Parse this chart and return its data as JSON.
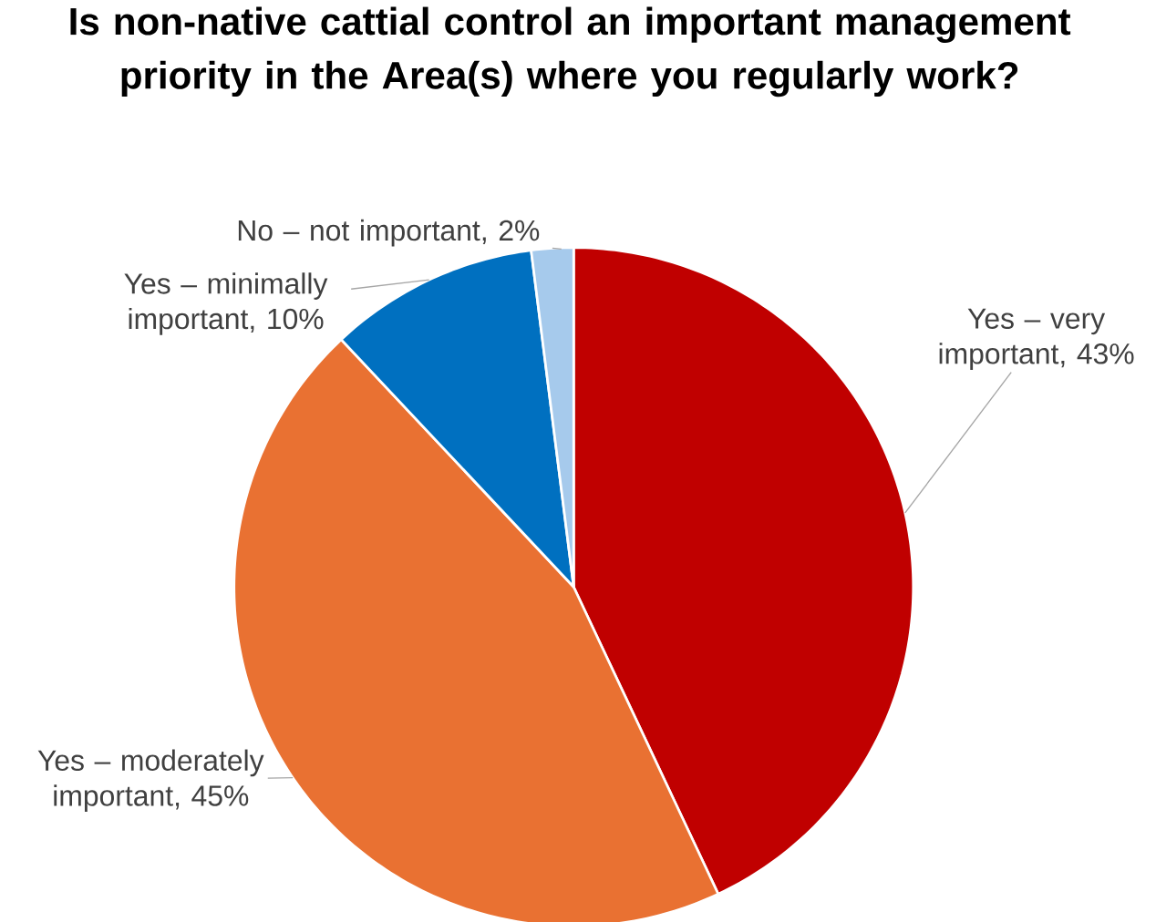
{
  "chart_data": {
    "type": "pie",
    "title": "Is non-native cattial control an important management priority in the Area(s) where you regularly work?",
    "categories": [
      "Yes – very important",
      "Yes – moderately important",
      "Yes – minimally important",
      "No – not important"
    ],
    "values": [
      43,
      45,
      10,
      2
    ],
    "value_labels": [
      ", 43%",
      ", 45%",
      ", 10%",
      ", 2%"
    ],
    "colors": [
      "#c00000",
      "#e97132",
      "#0070c0",
      "#a6caec"
    ]
  }
}
